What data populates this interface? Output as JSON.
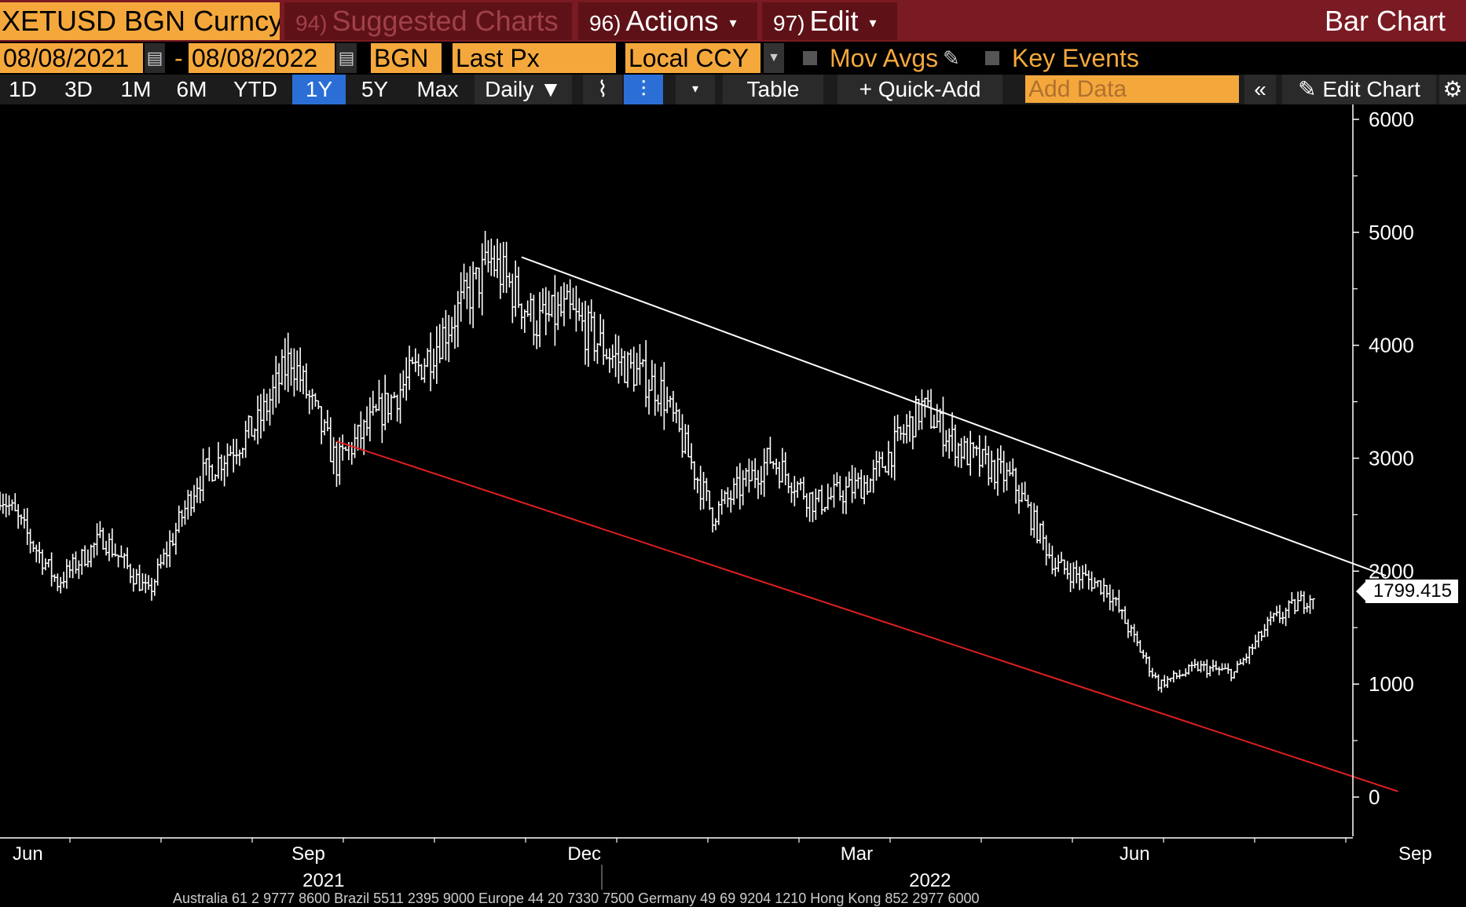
{
  "header": {
    "ticker": "XETUSD BGN Curncy",
    "suggested_num": "94)",
    "suggested_label": "Suggested Charts",
    "actions_num": "96)",
    "actions_label": "Actions",
    "edit_num": "97)",
    "edit_label": "Edit",
    "bar_chart_label": "Bar Chart"
  },
  "controls": {
    "start_date": "08/08/2021",
    "end_date": "08/08/2022",
    "date_sep": "-",
    "source": "BGN",
    "field": "Last Px",
    "currency": "Local CCY",
    "mov_avgs": "Mov Avgs",
    "key_events": "Key Events"
  },
  "toolbar": {
    "periods": [
      "1D",
      "3D",
      "1M",
      "6M",
      "YTD",
      "1Y",
      "5Y",
      "Max"
    ],
    "active_period": "1Y",
    "frequency": "Daily ▼",
    "table_label": "Table",
    "quick_add": "+ Quick-Add",
    "add_data_placeholder": "Add Data",
    "edit_chart": "Edit Chart"
  },
  "chart_data": {
    "type": "ohlc",
    "instrument": "XETUSD BGN Curncy",
    "frequency": "Daily",
    "y_ticks": [
      0,
      1000,
      2000,
      3000,
      4000,
      5000,
      6000
    ],
    "ylim": [
      0,
      6000
    ],
    "x_month_labels": [
      "Jun",
      "Sep",
      "Dec",
      "Mar",
      "Jun",
      "Sep"
    ],
    "x_year_labels": [
      "2021",
      "2022"
    ],
    "last_price": "1799.415",
    "close_series": [
      {
        "date": "2021-06-01",
        "close": 2700
      },
      {
        "date": "2021-06-20",
        "close": 1900
      },
      {
        "date": "2021-07-05",
        "close": 2300
      },
      {
        "date": "2021-07-20",
        "close": 1800
      },
      {
        "date": "2021-08-05",
        "close": 2800
      },
      {
        "date": "2021-08-25",
        "close": 3300
      },
      {
        "date": "2021-09-05",
        "close": 3900
      },
      {
        "date": "2021-09-20",
        "close": 2950
      },
      {
        "date": "2021-10-01",
        "close": 3300
      },
      {
        "date": "2021-10-20",
        "close": 3900
      },
      {
        "date": "2021-11-10",
        "close": 4750
      },
      {
        "date": "2021-11-25",
        "close": 4200
      },
      {
        "date": "2021-12-05",
        "close": 4300
      },
      {
        "date": "2021-12-20",
        "close": 3900
      },
      {
        "date": "2022-01-05",
        "close": 3600
      },
      {
        "date": "2022-01-22",
        "close": 2500
      },
      {
        "date": "2022-02-10",
        "close": 3000
      },
      {
        "date": "2022-02-25",
        "close": 2600
      },
      {
        "date": "2022-03-15",
        "close": 2800
      },
      {
        "date": "2022-04-01",
        "close": 3450
      },
      {
        "date": "2022-04-15",
        "close": 3050
      },
      {
        "date": "2022-05-01",
        "close": 2800
      },
      {
        "date": "2022-05-15",
        "close": 2050
      },
      {
        "date": "2022-06-01",
        "close": 1850
      },
      {
        "date": "2022-06-18",
        "close": 1000
      },
      {
        "date": "2022-07-01",
        "close": 1150
      },
      {
        "date": "2022-07-13",
        "close": 1100
      },
      {
        "date": "2022-07-25",
        "close": 1550
      },
      {
        "date": "2022-08-08",
        "close": 1799
      }
    ],
    "trendlines": [
      {
        "color": "#ffffff",
        "start": {
          "date": "2021-11-20",
          "value": 4780
        },
        "end": {
          "date": "2022-09-01",
          "value": 1960
        }
      },
      {
        "color": "#e02020",
        "start": {
          "date": "2021-09-20",
          "value": 3150
        },
        "end": {
          "date": "2022-09-05",
          "value": 50
        }
      }
    ]
  },
  "footer": {
    "text": "Australia 61 2 9777 8600 Brazil 5511 2395 9000 Europe 44 20 7330 7500 Germany 49 69 9204 1210 Hong Kong 852 2977 6000"
  }
}
